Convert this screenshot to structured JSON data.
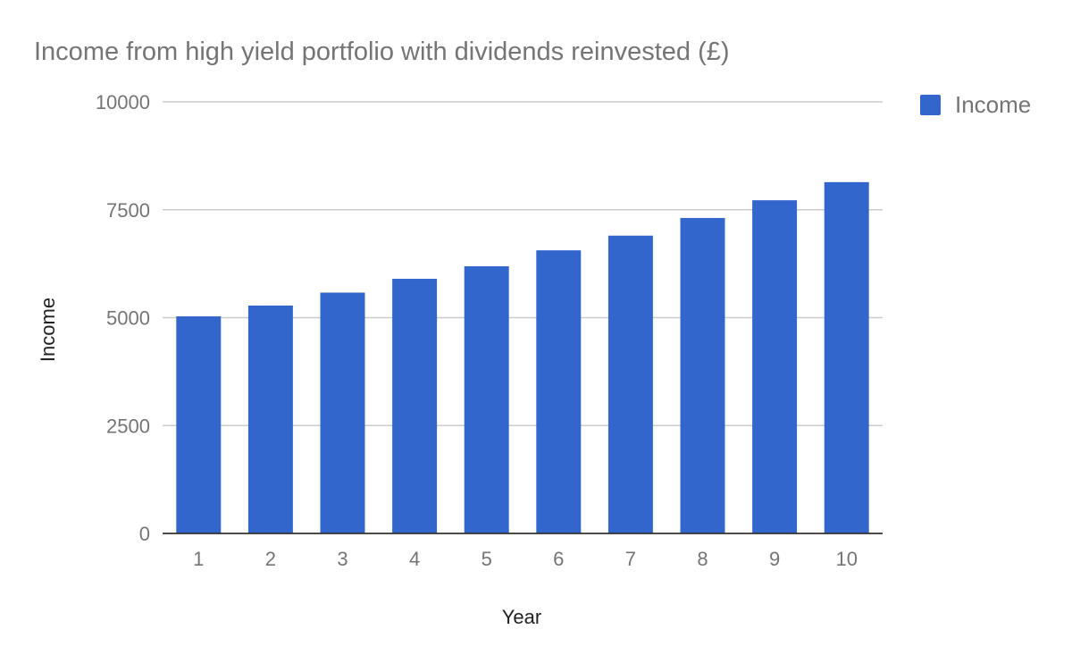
{
  "chart_data": {
    "type": "bar",
    "title": "Income from high yield portfolio with dividends reinvested (£)",
    "xlabel": "Year",
    "ylabel": "Income",
    "categories": [
      "1",
      "2",
      "3",
      "4",
      "5",
      "6",
      "7",
      "8",
      "9",
      "10"
    ],
    "series": [
      {
        "name": "Income",
        "color": "#3366cc",
        "values": [
          5030,
          5280,
          5580,
          5900,
          6190,
          6560,
          6900,
          7310,
          7720,
          8140
        ]
      }
    ],
    "ylim": [
      0,
      10000
    ],
    "yticks": [
      "0",
      "2500",
      "5000",
      "7500",
      "10000"
    ],
    "grid": true,
    "legend": "right"
  }
}
